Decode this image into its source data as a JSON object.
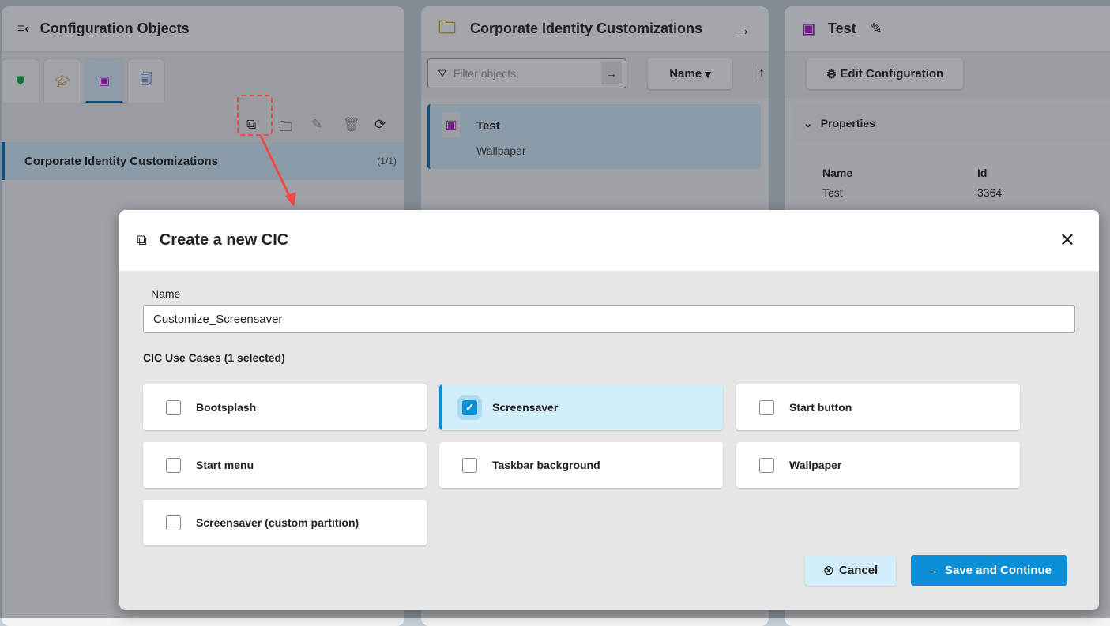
{
  "left_panel": {
    "title": "Configuration Objects",
    "tabs": [
      {
        "icon": "shield-icon",
        "color": "#1e9e4a"
      },
      {
        "icon": "graduation-cap-icon",
        "color": "#e07a10"
      },
      {
        "icon": "cic-chip-icon",
        "color": "#b01ec8"
      },
      {
        "icon": "document-link-icon",
        "color": "#1a40c0"
      }
    ],
    "toolbar": [
      "new-cic-icon",
      "new-folder-icon",
      "edit-icon",
      "delete-icon",
      "refresh-icon"
    ],
    "list_item": {
      "label": "Corporate Identity Customizations",
      "count": "(1/1)"
    }
  },
  "middle_panel": {
    "title": "Corporate Identity Customizations",
    "filter_placeholder": "Filter objects",
    "sort_label": "Name",
    "item": {
      "name": "Test",
      "subtitle": "Wallpaper"
    }
  },
  "right_panel": {
    "title": "Test",
    "edit_button": "Edit Configuration",
    "section": "Properties",
    "properties": {
      "headers": [
        "Name",
        "Id"
      ],
      "values": [
        "Test",
        "3364"
      ]
    }
  },
  "dialog": {
    "title": "Create a new CIC",
    "name_label": "Name",
    "name_value": "Customize_Screensaver",
    "use_cases_heading": "CIC Use Cases (1 selected)",
    "use_cases": [
      {
        "label": "Bootsplash",
        "checked": false
      },
      {
        "label": "Screensaver",
        "checked": true
      },
      {
        "label": "Start button",
        "checked": false
      },
      {
        "label": "Start menu",
        "checked": false
      },
      {
        "label": "Taskbar background",
        "checked": false
      },
      {
        "label": "Wallpaper",
        "checked": false
      },
      {
        "label": "Screensaver (custom partition)",
        "checked": false
      }
    ],
    "cancel": "Cancel",
    "save": "Save and Continue"
  },
  "colors": {
    "accent": "#0a8fd8",
    "annotation": "#f04848"
  }
}
